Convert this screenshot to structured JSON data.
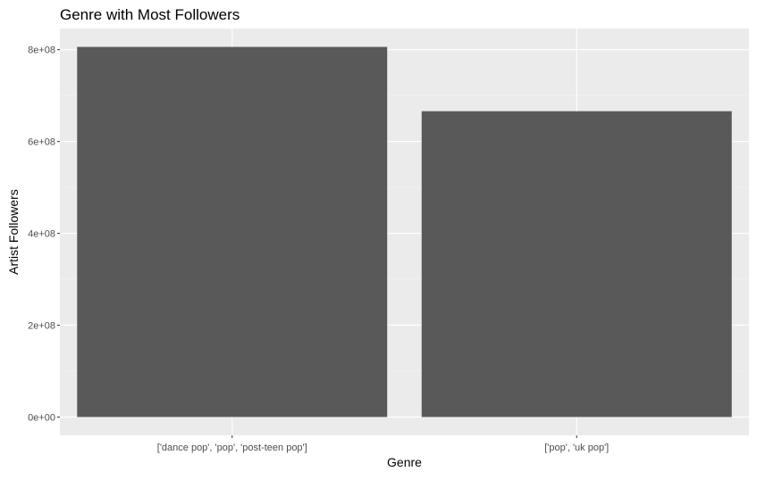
{
  "chart_data": {
    "type": "bar",
    "title": "Genre with Most Followers",
    "xlabel": "Genre",
    "ylabel": "Artist Followers",
    "categories": [
      "['dance pop', 'pop', 'post-teen pop']",
      "['pop', 'uk pop']"
    ],
    "values": [
      806000000,
      666000000
    ],
    "ylim": [
      -40000000,
      846000000
    ],
    "yticks": [
      0,
      200000000,
      400000000,
      600000000,
      800000000
    ],
    "ytick_labels": [
      "0e+00",
      "2e+08",
      "4e+08",
      "6e+08",
      "8e+08"
    ],
    "grid": true,
    "legend": "none",
    "colors": {
      "panel_background": "#ebebeb",
      "grid_major": "#ffffff",
      "grid_minor": "#f5f5f5",
      "bar_fill": "#595959",
      "tick_color": "#333333",
      "tick_label": "#4d4d4d",
      "title": "#000000"
    }
  }
}
